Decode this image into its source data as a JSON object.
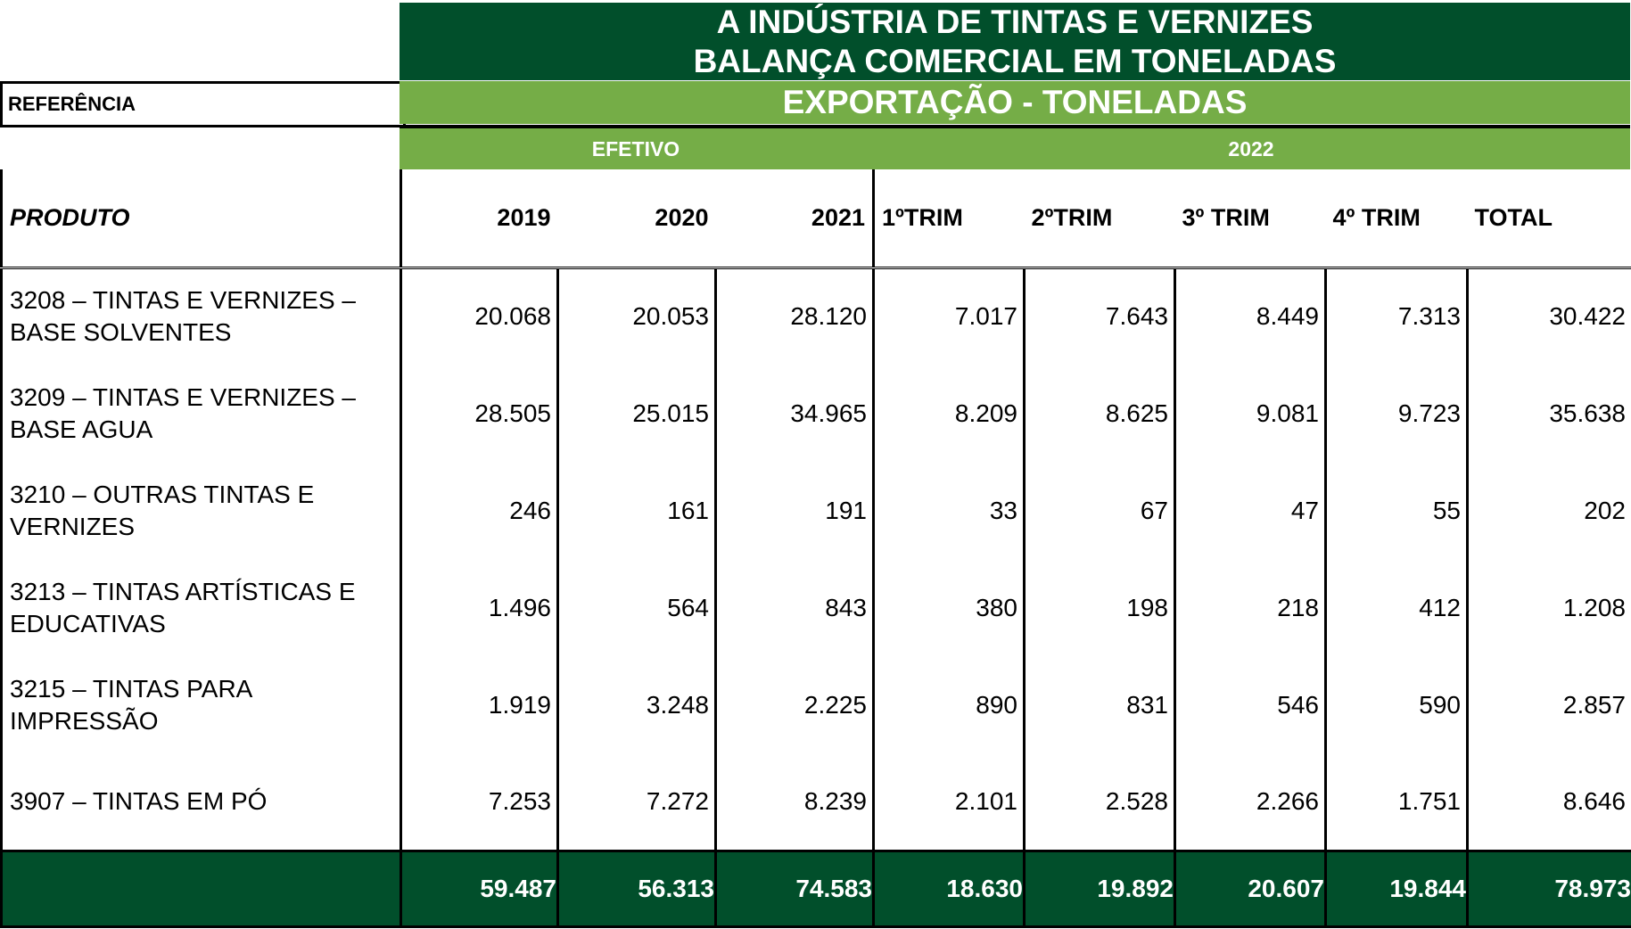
{
  "title": {
    "line1": "A INDÚSTRIA DE TINTAS E VERNIZES",
    "line2": "BALANÇA COMERCIAL  EM TONELADAS"
  },
  "reference_label": "REFERÊNCIA",
  "export_label": "EXPORTAÇÃO - TONELADAS",
  "groups": {
    "efetivo": "EFETIVO",
    "year": "2022"
  },
  "headers": {
    "produto": "PRODUTO",
    "y2019": "2019",
    "y2020": "2020",
    "y2021": "2021",
    "q1": "1ºTRIM",
    "q2": "2ºTRIM",
    "q3": "3º TRIM",
    "q4": "4º TRIM",
    "total": "TOTAL"
  },
  "rows": [
    {
      "produto": "3208 – TINTAS E VERNIZES – BASE SOLVENTES",
      "y2019": "20.068",
      "y2020": "20.053",
      "y2021": "28.120",
      "q1": "7.017",
      "q2": "7.643",
      "q3": "8.449",
      "q4": "7.313",
      "total": "30.422"
    },
    {
      "produto": "3209 – TINTAS E VERNIZES – BASE AGUA",
      "y2019": "28.505",
      "y2020": "25.015",
      "y2021": "34.965",
      "q1": "8.209",
      "q2": "8.625",
      "q3": "9.081",
      "q4": "9.723",
      "total": "35.638"
    },
    {
      "produto": "3210 – OUTRAS TINTAS E VERNIZES",
      "y2019": "246",
      "y2020": "161",
      "y2021": "191",
      "q1": "33",
      "q2": "67",
      "q3": "47",
      "q4": "55",
      "total": "202"
    },
    {
      "produto": "3213 – TINTAS ARTÍSTICAS E EDUCATIVAS",
      "y2019": "1.496",
      "y2020": "564",
      "y2021": "843",
      "q1": "380",
      "q2": "198",
      "q3": "218",
      "q4": "412",
      "total": "1.208"
    },
    {
      "produto": "3215 – TINTAS PARA IMPRESSÃO",
      "y2019": "1.919",
      "y2020": "3.248",
      "y2021": "2.225",
      "q1": "890",
      "q2": "831",
      "q3": "546",
      "q4": "590",
      "total": "2.857"
    },
    {
      "produto": "3907 – TINTAS EM PÓ",
      "y2019": "7.253",
      "y2020": "7.272",
      "y2021": "8.239",
      "q1": "2.101",
      "q2": "2.528",
      "q3": "2.266",
      "q4": "1.751",
      "total": "8.646"
    }
  ],
  "totals": {
    "y2019": "59.487",
    "y2020": "56.313",
    "y2021": "74.583",
    "q1": "18.630",
    "q2": "19.892",
    "q3": "20.607",
    "q4": "19.844",
    "total": "78.973"
  },
  "colors": {
    "dark_green": "#014f2b",
    "light_green": "#75ad47"
  }
}
